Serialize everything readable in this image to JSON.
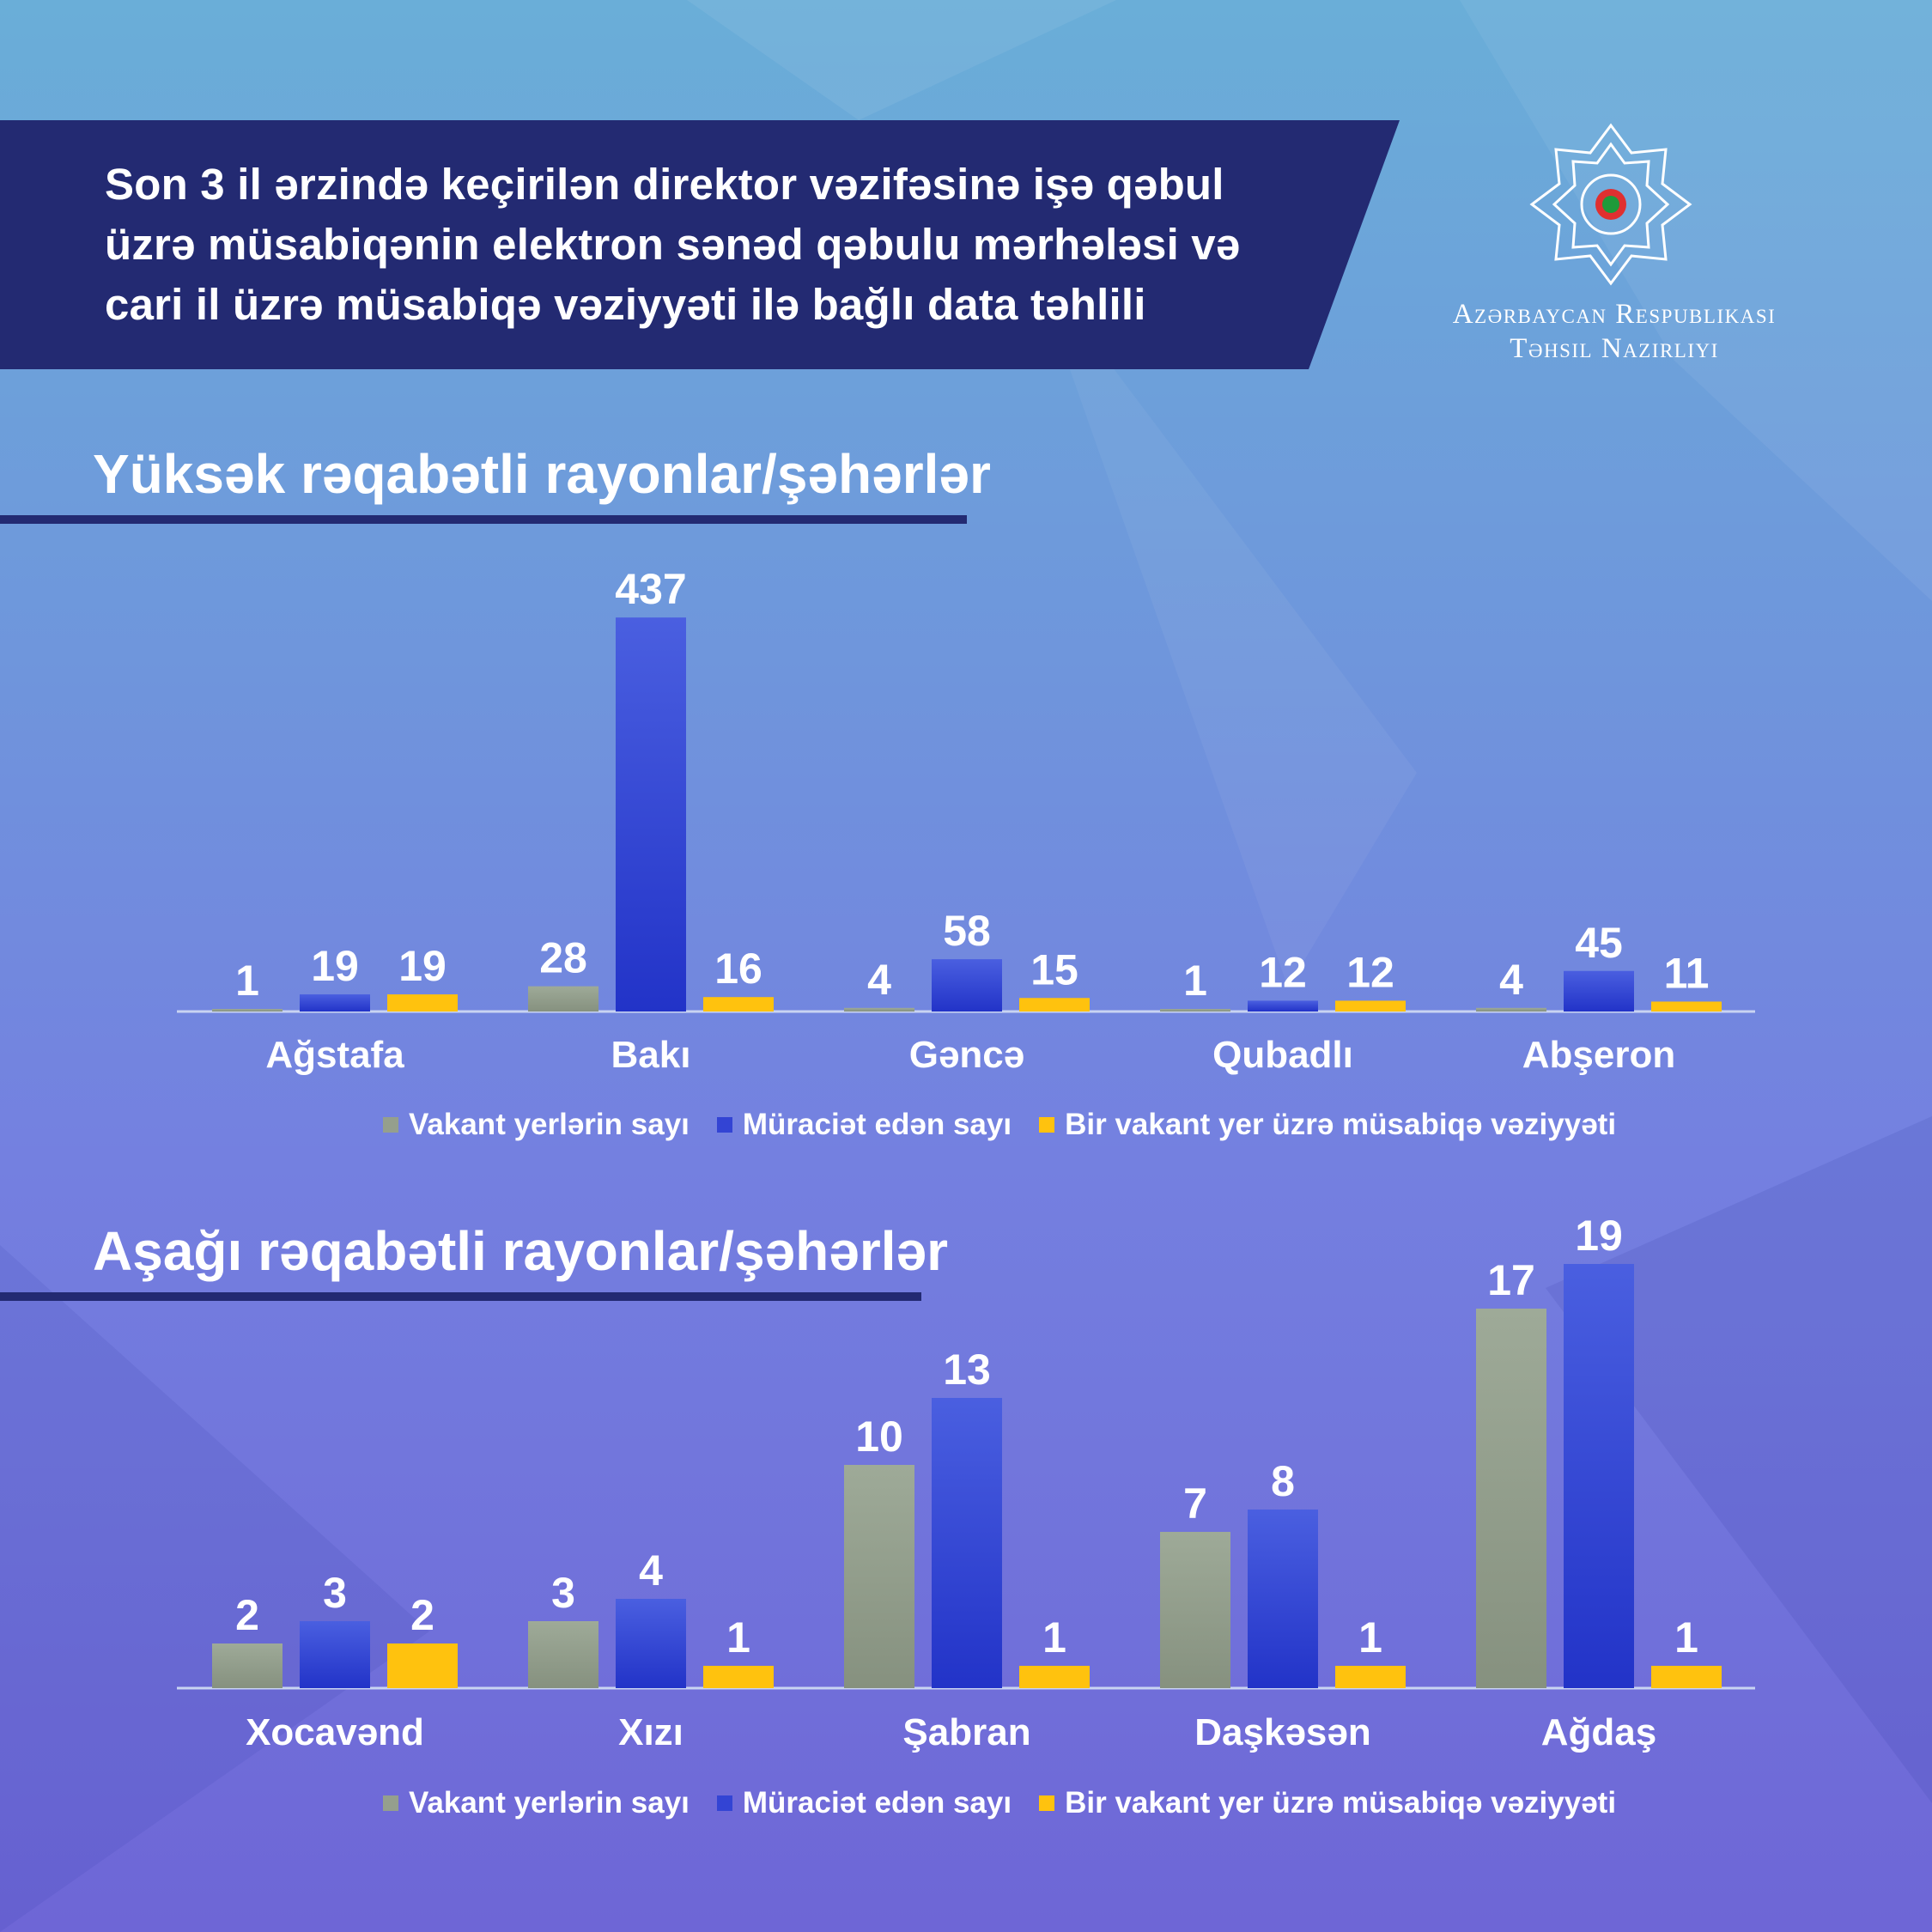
{
  "header": {
    "title": "Son 3 il ərzində keçirilən direktor vəzifəsinə işə qəbul\nüzrə müsabiqənin elektron sənəd qəbulu mərhələsi və\ncari il üzrə müsabiqə vəziyyəti ilə bağlı data təhlili",
    "ministry_line1": "Azərbaycan Respublikası",
    "ministry_line2": "Təhsil Nazirliyi"
  },
  "colors": {
    "vakant": "#959f8d",
    "muraciet": "#3344d4",
    "musabiqe": "#ffc20e",
    "banner": "#232a72"
  },
  "chart_data": [
    {
      "type": "bar",
      "title": "Yüksək rəqabətli rayonlar/şəhərlər",
      "categories": [
        "Ağstafa",
        "Bakı",
        "Gəncə",
        "Qubadlı",
        "Abşeron"
      ],
      "series": [
        {
          "name": "Vakant yerlərin sayı",
          "values": [
            1,
            28,
            4,
            1,
            4
          ]
        },
        {
          "name": "Müraciət edən sayı",
          "values": [
            19,
            437,
            58,
            12,
            45
          ]
        },
        {
          "name": "Bir vakant yer üzrə müsabiqə vəziyyəti",
          "values": [
            19,
            16,
            15,
            12,
            11
          ]
        }
      ],
      "legend": "bottom"
    },
    {
      "type": "bar",
      "title": "Aşağı rəqabətli rayonlar/şəhərlər",
      "categories": [
        "Xocavənd",
        "Xızı",
        "Şabran",
        "Daşkəsən",
        "Ağdaş"
      ],
      "series": [
        {
          "name": "Vakant yerlərin sayı",
          "values": [
            2,
            3,
            10,
            7,
            17
          ]
        },
        {
          "name": "Müraciət edən sayı",
          "values": [
            3,
            4,
            13,
            8,
            19
          ]
        },
        {
          "name": "Bir vakant yer üzrə müsabiqə vəziyyəti",
          "values": [
            2,
            1,
            1,
            1,
            1
          ]
        }
      ],
      "legend": "bottom"
    }
  ]
}
